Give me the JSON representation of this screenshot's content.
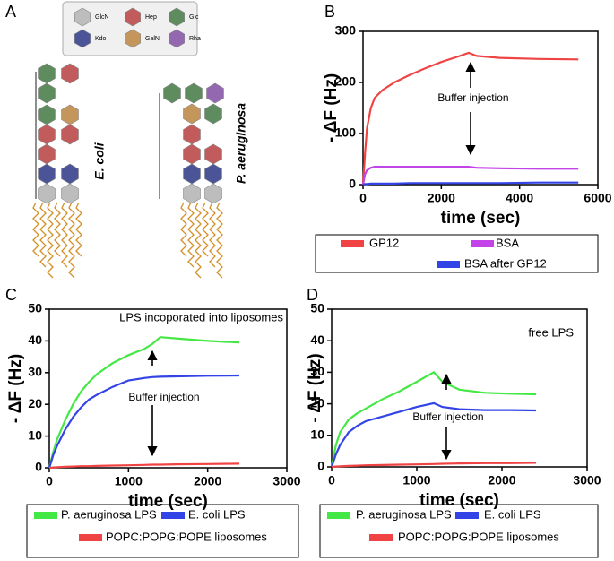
{
  "diagram": {
    "panel": "A",
    "legend": [
      "GlcN",
      "Hep",
      "Glc",
      "Kdo",
      "GalN",
      "Rha"
    ],
    "labels": [
      "E. coli",
      "P. aeruginosa"
    ]
  },
  "chart_data": [
    {
      "type": "line",
      "panel": "B",
      "x_label": "time (sec)",
      "y_label": "- ΔF (Hz)",
      "annotations": [
        "Buffer injection"
      ],
      "x": [
        0,
        50,
        100,
        200,
        300,
        500,
        800,
        1200,
        1600,
        2000,
        2400,
        2700,
        2900,
        3500,
        4500,
        5500
      ],
      "series": [
        {
          "name": "GP12",
          "color": "#f04444",
          "values": [
            0,
            60,
            110,
            150,
            170,
            185,
            200,
            215,
            228,
            240,
            250,
            258,
            252,
            248,
            246,
            245
          ]
        },
        {
          "name": "BSA",
          "color": "#c244e8",
          "values": [
            0,
            20,
            28,
            33,
            35,
            35,
            35,
            35,
            35,
            35,
            35,
            35,
            33,
            32,
            31,
            31
          ]
        },
        {
          "name": "BSA after GP12",
          "color": "#3344e6",
          "values": [
            0,
            1,
            1,
            2,
            2,
            2,
            2,
            3,
            3,
            3,
            3,
            3,
            3,
            3,
            4,
            4
          ]
        }
      ],
      "xlim": [
        0,
        6000
      ],
      "xticks": [
        0,
        2000,
        4000,
        6000
      ],
      "ylim": [
        0,
        300
      ],
      "yticks": [
        0,
        100,
        200,
        300
      ]
    },
    {
      "type": "line",
      "panel": "C",
      "x_label": "time (sec)",
      "y_label": "- ΔF (Hz)",
      "annotations": [
        "LPS incoporated into liposomes",
        "Buffer injection"
      ],
      "x": [
        0,
        50,
        100,
        200,
        300,
        400,
        500,
        600,
        800,
        1000,
        1200,
        1300,
        1400,
        1600,
        2000,
        2400
      ],
      "series": [
        {
          "name": "P. aeruginosa LPS",
          "color": "#44e844",
          "values": [
            0,
            5,
            9,
            15,
            20,
            24,
            27,
            29.5,
            33,
            35.5,
            37.5,
            39,
            41.2,
            40.8,
            40,
            39.5
          ]
        },
        {
          "name": "E. coli LPS",
          "color": "#3344e6",
          "values": [
            0,
            4,
            7,
            12,
            16,
            19,
            21.5,
            23,
            25.5,
            27.5,
            28.3,
            28.6,
            28.7,
            28.8,
            29,
            29.1
          ]
        },
        {
          "name": "POPC:POPG:POPE liposomes",
          "color": "#f04444",
          "values": [
            0,
            0.1,
            0.2,
            0.3,
            0.4,
            0.5,
            0.5,
            0.6,
            0.7,
            0.8,
            0.9,
            1,
            1,
            1.1,
            1.2,
            1.3
          ]
        }
      ],
      "xlim": [
        0,
        3000
      ],
      "xticks": [
        0,
        1000,
        2000,
        3000
      ],
      "ylim": [
        0,
        50
      ],
      "yticks": [
        0,
        10,
        20,
        30,
        40,
        50
      ]
    },
    {
      "type": "line",
      "panel": "D",
      "x_label": "time (sec)",
      "y_label": "- ΔF (Hz)",
      "annotations": [
        "free LPS",
        "Buffer injection"
      ],
      "x": [
        0,
        50,
        100,
        200,
        300,
        400,
        600,
        800,
        1000,
        1200,
        1300,
        1500,
        1800,
        2100,
        2400
      ],
      "series": [
        {
          "name": "P. aeruginosa LPS",
          "color": "#44e844",
          "values": [
            0,
            7,
            11,
            15,
            17,
            18.5,
            21.5,
            24,
            27,
            30,
            27,
            24.5,
            23.5,
            23.2,
            23
          ]
        },
        {
          "name": "E. coli LPS",
          "color": "#3344e6",
          "values": [
            0,
            4,
            7,
            11,
            13,
            14.5,
            16,
            17.5,
            19,
            20.2,
            19,
            18.3,
            18,
            18,
            17.9
          ]
        },
        {
          "name": "POPC:POPG:POPE liposomes",
          "color": "#f04444",
          "values": [
            0,
            0.1,
            0.2,
            0.3,
            0.4,
            0.5,
            0.6,
            0.7,
            0.8,
            0.9,
            1,
            1.1,
            1.2,
            1.2,
            1.3
          ]
        }
      ],
      "xlim": [
        0,
        3000
      ],
      "xticks": [
        0,
        1000,
        2000,
        3000
      ],
      "ylim": [
        0,
        50
      ],
      "yticks": [
        0,
        10,
        20,
        30,
        40,
        50
      ]
    }
  ]
}
